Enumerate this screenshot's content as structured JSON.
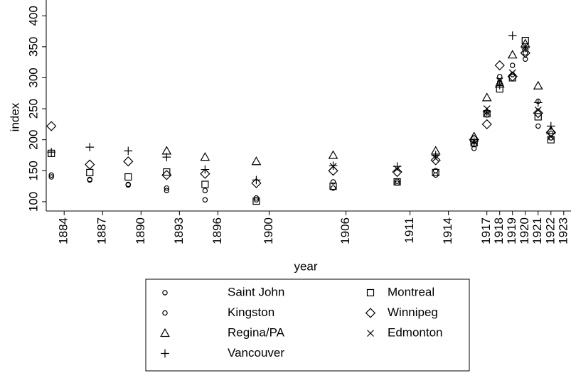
{
  "chart_data": {
    "type": "scatter",
    "xlabel": "year",
    "ylabel": "index",
    "x": [
      1883,
      1886,
      1889,
      1892,
      1895,
      1899,
      1905,
      1910,
      1913,
      1916,
      1917,
      1918,
      1919,
      1920,
      1921,
      1922
    ],
    "xlim": [
      1882.6,
      1923.4
    ],
    "xticks": [
      1884,
      1887,
      1890,
      1893,
      1896,
      1900,
      1906,
      1911,
      1914,
      1917,
      1918,
      1919,
      1920,
      1921,
      1922,
      1923
    ],
    "ylim": [
      85,
      414
    ],
    "yticks": [
      100,
      150,
      200,
      250,
      300,
      350,
      400
    ],
    "series": [
      {
        "name": "Saint John",
        "color": "#000000",
        "marker": "circle",
        "values": [
          140,
          135,
          127,
          118,
          103,
          103,
          122,
          130,
          143,
          186,
          240,
          293,
          305,
          330,
          222,
          203
        ]
      },
      {
        "name": "Montreal",
        "color": "#000000",
        "marker": "square",
        "values": [
          178,
          147,
          140,
          148,
          128,
          101,
          125,
          132,
          147,
          195,
          242,
          282,
          300,
          360,
          237,
          200
        ]
      },
      {
        "name": "Kingston",
        "color": "#000000",
        "marker": "circle",
        "values": [
          143,
          136,
          128,
          122,
          118,
          106,
          132,
          133,
          150,
          192,
          245,
          302,
          320,
          340,
          262,
          210
        ]
      },
      {
        "name": "Winnipeg",
        "color": "#000000",
        "marker": "diamond",
        "values": [
          222,
          160,
          165,
          143,
          145,
          130,
          150,
          148,
          167,
          200,
          225,
          320,
          302,
          340,
          243,
          212
        ]
      },
      {
        "name": "Regina/PA",
        "color": "#000000",
        "marker": "triangle",
        "values": [
          null,
          null,
          null,
          182,
          172,
          165,
          175,
          null,
          182,
          205,
          268,
          290,
          337,
          355,
          287,
          215
        ]
      },
      {
        "name": "Edmonton",
        "color": "#000000",
        "marker": "x",
        "values": [
          null,
          null,
          null,
          null,
          null,
          null,
          157,
          153,
          170,
          198,
          250,
          295,
          308,
          350,
          248,
          205
        ]
      },
      {
        "name": "Vancouver",
        "color": "#000000",
        "marker": "plus",
        "values": [
          180,
          188,
          182,
          172,
          152,
          135,
          158,
          157,
          175,
          197,
          245,
          288,
          368,
          348,
          260,
          222
        ]
      }
    ]
  }
}
